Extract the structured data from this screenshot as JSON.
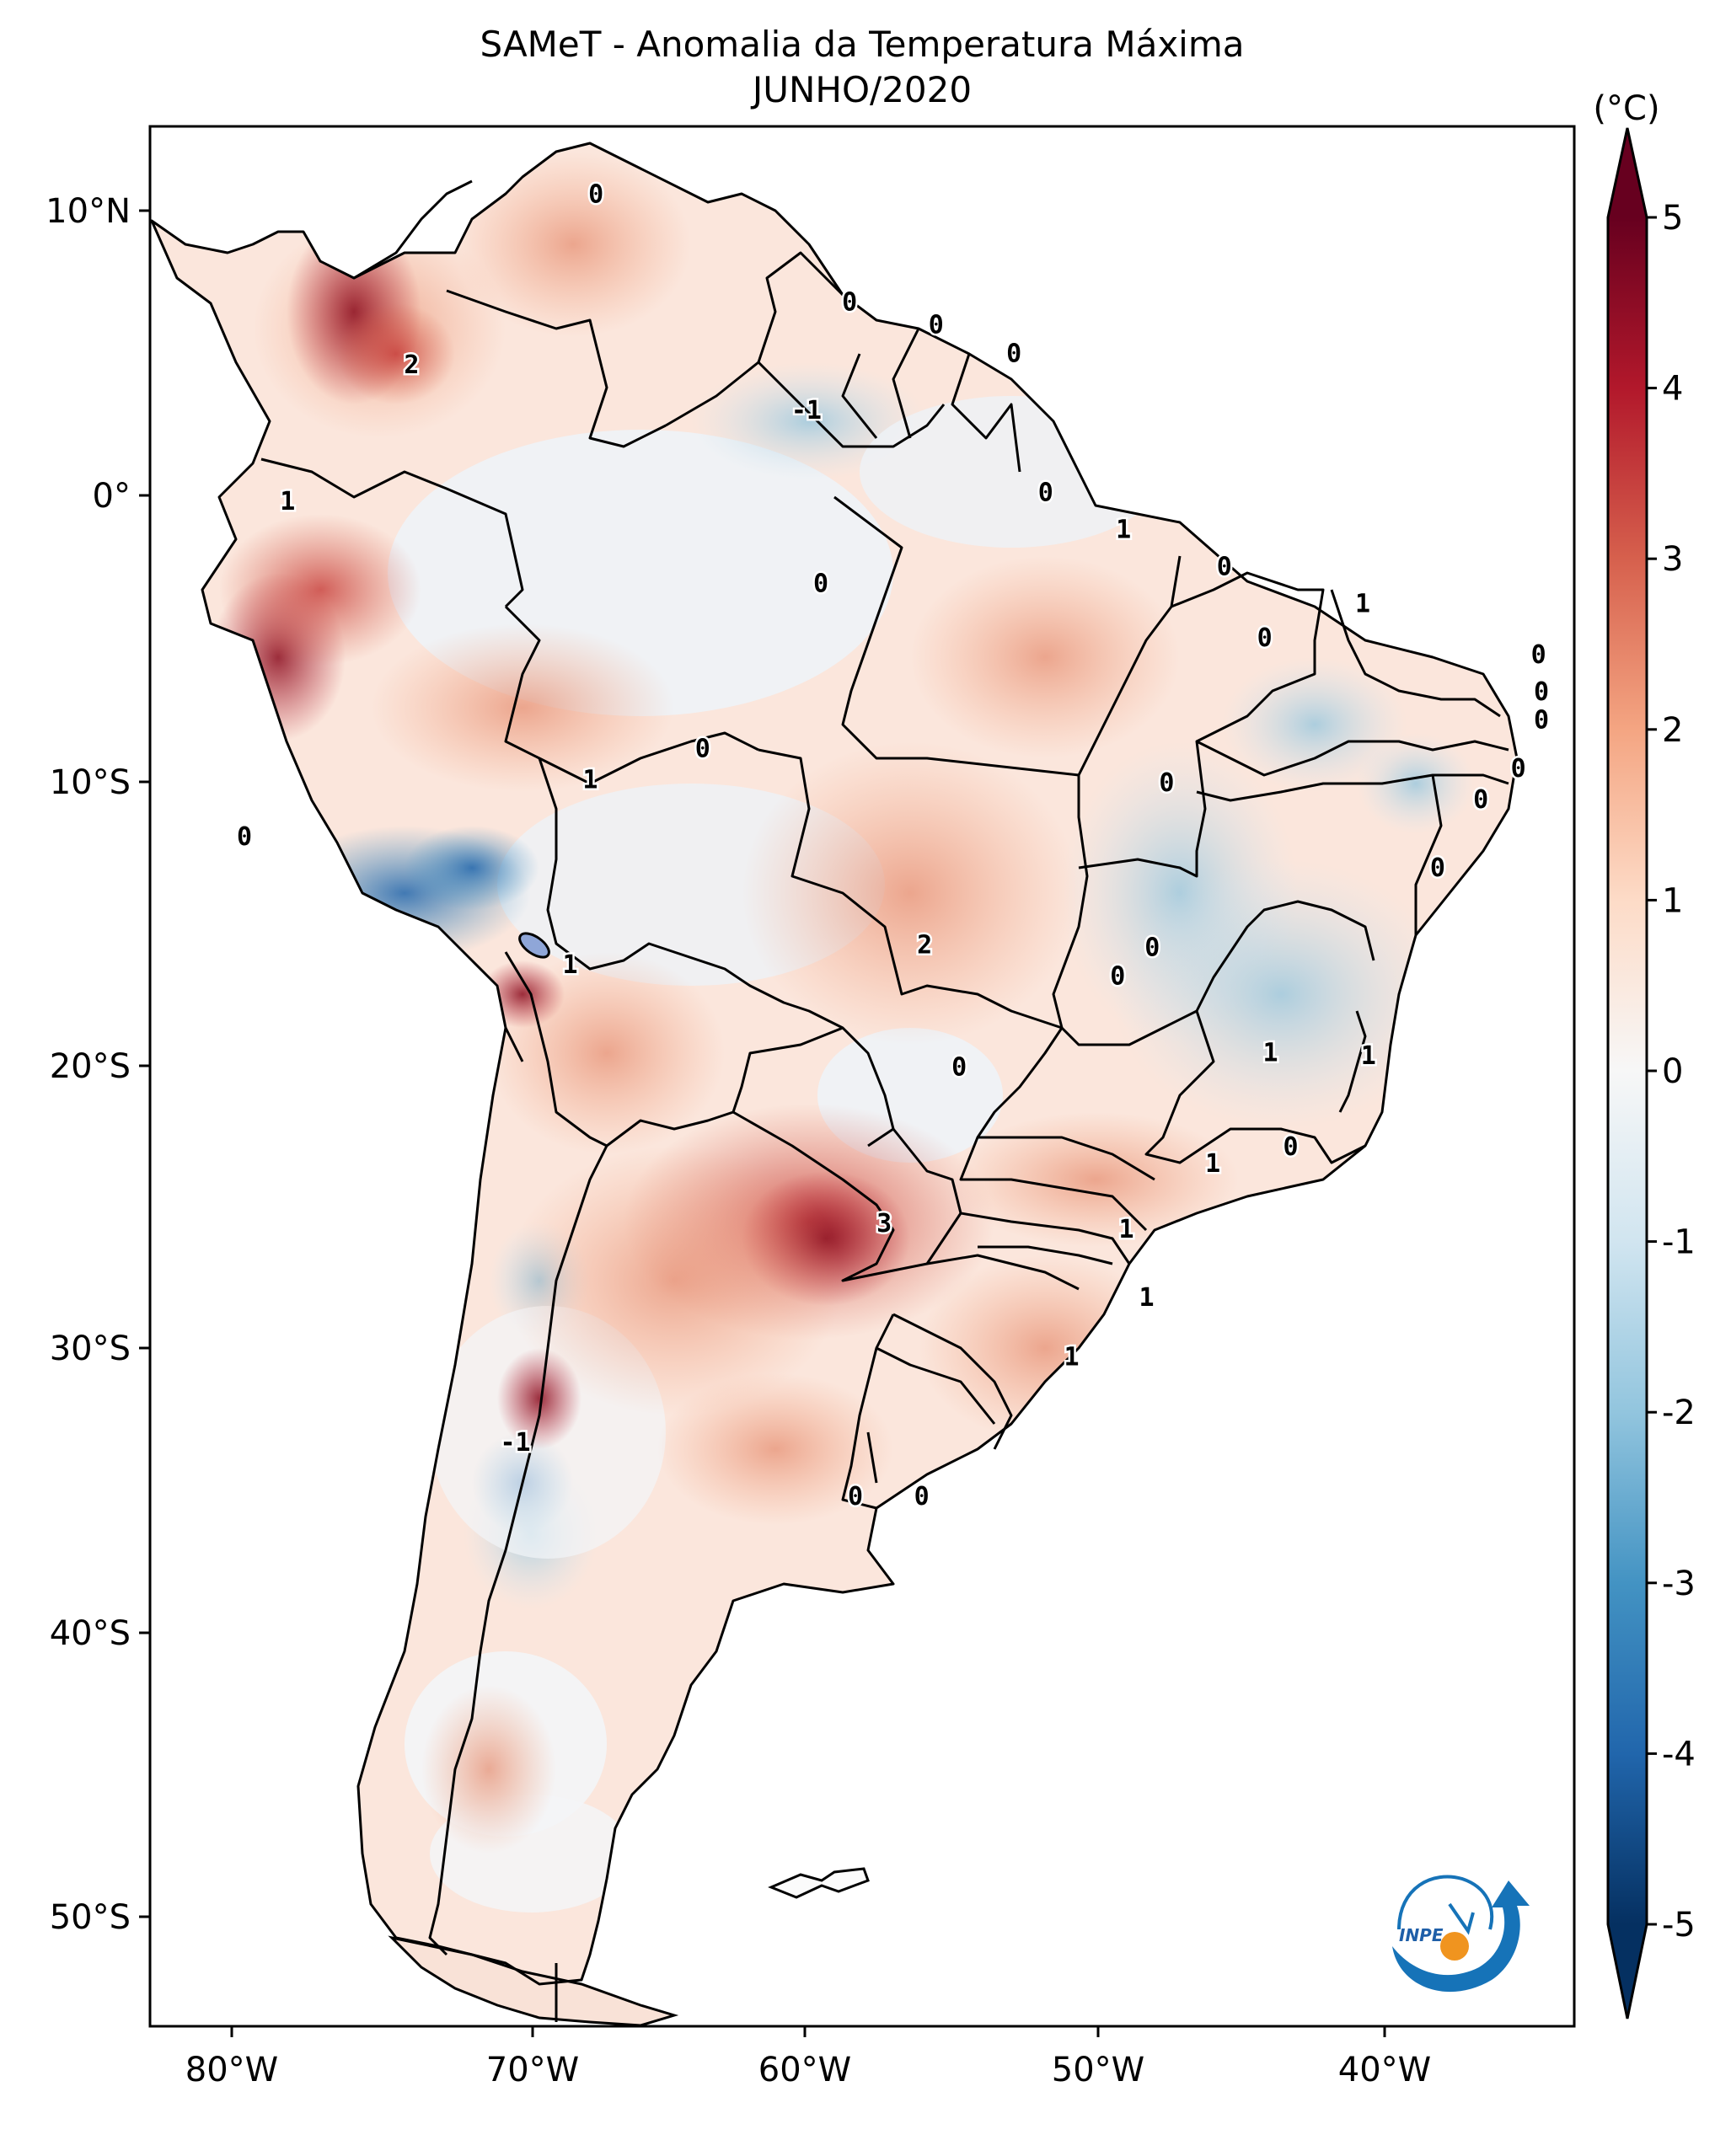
{
  "title": "SAMeT - Anomalia da Temperatura Máxima",
  "subtitle": "JUNHO/2020",
  "colorbar": {
    "unit": "(°C)",
    "ticks": [
      "5",
      "4",
      "3",
      "2",
      "1",
      "0",
      "-1",
      "-2",
      "-3",
      "-4",
      "-5"
    ]
  },
  "axes": {
    "lon_ticks": [
      "80°W",
      "70°W",
      "60°W",
      "50°W",
      "40°W"
    ],
    "lat_ticks": [
      "10°N",
      "0°",
      "10°S",
      "20°S",
      "30°S",
      "40°S",
      "50°S"
    ]
  },
  "contour_labels": [
    {
      "text": "0",
      "lon": -67.8,
      "lat": 10.6
    },
    {
      "text": "0",
      "lon": -59.0,
      "lat": 6.8
    },
    {
      "text": "0",
      "lon": -56.0,
      "lat": 6.0
    },
    {
      "text": "0",
      "lon": -53.3,
      "lat": 5.0
    },
    {
      "text": "2",
      "lon": -74.2,
      "lat": 4.6
    },
    {
      "text": "-1",
      "lon": -60.5,
      "lat": 3.0
    },
    {
      "text": "1",
      "lon": -78.5,
      "lat": -0.2
    },
    {
      "text": "0",
      "lon": -52.2,
      "lat": 0.1
    },
    {
      "text": "1",
      "lon": -49.5,
      "lat": -1.2
    },
    {
      "text": "0",
      "lon": -46.0,
      "lat": -2.5
    },
    {
      "text": "0",
      "lon": -60.0,
      "lat": -3.1
    },
    {
      "text": "1",
      "lon": -41.2,
      "lat": -3.8
    },
    {
      "text": "0",
      "lon": -44.6,
      "lat": -5.0
    },
    {
      "text": "0",
      "lon": -35.1,
      "lat": -5.6
    },
    {
      "text": "0",
      "lon": -35.0,
      "lat": -6.9
    },
    {
      "text": "0",
      "lon": -35.0,
      "lat": -7.9
    },
    {
      "text": "0",
      "lon": -64.1,
      "lat": -8.9
    },
    {
      "text": "0",
      "lon": -35.8,
      "lat": -9.6
    },
    {
      "text": "1",
      "lon": -68.0,
      "lat": -10.0
    },
    {
      "text": "0",
      "lon": -48.0,
      "lat": -10.1
    },
    {
      "text": "0",
      "lon": -37.1,
      "lat": -10.7
    },
    {
      "text": "0",
      "lon": -80.0,
      "lat": -12.0
    },
    {
      "text": "0",
      "lon": -38.6,
      "lat": -13.1
    },
    {
      "text": "2",
      "lon": -56.4,
      "lat": -15.8
    },
    {
      "text": "0",
      "lon": -48.5,
      "lat": -15.9
    },
    {
      "text": "0",
      "lon": -49.7,
      "lat": -16.9
    },
    {
      "text": "1",
      "lon": -68.7,
      "lat": -16.5
    },
    {
      "text": "0",
      "lon": -55.2,
      "lat": -20.1
    },
    {
      "text": "1",
      "lon": -44.4,
      "lat": -19.6
    },
    {
      "text": "1",
      "lon": -41.0,
      "lat": -19.7
    },
    {
      "text": "1",
      "lon": -46.4,
      "lat": -23.5
    },
    {
      "text": "0",
      "lon": -43.7,
      "lat": -22.9
    },
    {
      "text": "3",
      "lon": -57.8,
      "lat": -25.6
    },
    {
      "text": "1",
      "lon": -49.4,
      "lat": -25.8
    },
    {
      "text": "1",
      "lon": -48.7,
      "lat": -28.2
    },
    {
      "text": "1",
      "lon": -51.3,
      "lat": -30.3
    },
    {
      "text": "-1",
      "lon": -70.6,
      "lat": -33.3
    },
    {
      "text": "0",
      "lon": -58.8,
      "lat": -35.2
    },
    {
      "text": "0",
      "lon": -56.5,
      "lat": -35.2
    }
  ],
  "logo": {
    "text": "INPE"
  }
}
